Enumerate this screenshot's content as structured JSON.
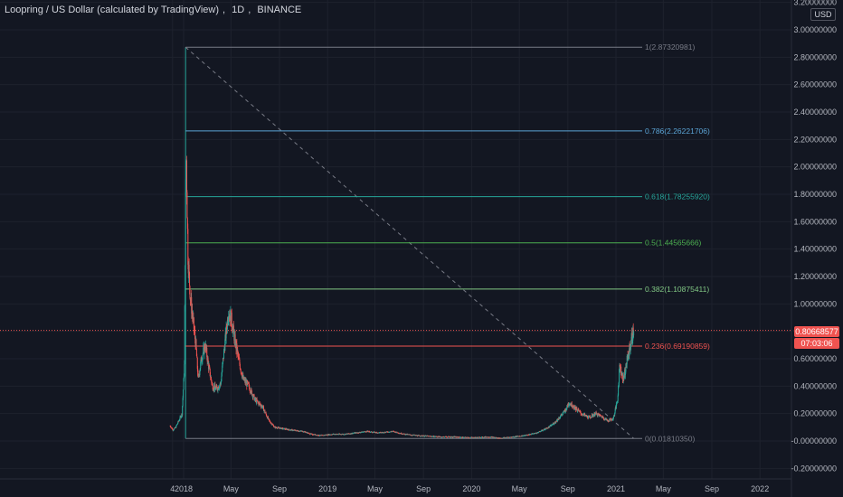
{
  "header": {
    "symbol_title": "Loopring / US Dollar (calculated by TradingView)",
    "interval": "1D",
    "exchange": "BINANCE",
    "currency_button": "USD"
  },
  "current_price": {
    "price_label": "0.80668577",
    "countdown_label": "07:03:06",
    "value": 0.80668577
  },
  "colors": {
    "background": "#131722",
    "grid": "#1e222d",
    "up": "#26a69a",
    "down": "#ef5350",
    "fib_786": "#5ba4d6",
    "fib_618": "#26a69a",
    "fib_5": "#4caf50",
    "fib_382": "#81c784",
    "fib_236": "#ef5350",
    "fib_0": "#787b86",
    "fib_1": "#787b86"
  },
  "chart_data": {
    "type": "candlestick",
    "xaxis": {
      "tick_labels": [
        "4",
        "2018",
        "May",
        "Sep",
        "2019",
        "May",
        "Sep",
        "2020",
        "May",
        "Sep",
        "2021",
        "May",
        "Sep",
        "2022"
      ],
      "range": [
        "2017-11-20",
        "2022-05-01"
      ]
    },
    "yaxis": {
      "tick_labels": [
        "3.20000000",
        "3.00000000",
        "2.80000000",
        "2.60000000",
        "2.40000000",
        "2.20000000",
        "2.00000000",
        "1.80000000",
        "1.60000000",
        "1.40000000",
        "1.20000000",
        "1.00000000",
        "0.80000000",
        "0.60000000",
        "0.40000000",
        "0.20000000",
        "-0.00000000",
        "-0.20000000"
      ],
      "ylim": [
        -0.24,
        3.22
      ],
      "grid": true
    },
    "fib_retracement": {
      "start_date": "2018-01-06",
      "end_date": "2021-02-15",
      "levels": [
        {
          "ratio": 1,
          "price": 2.87320981,
          "label": "1(2.87320981)"
        },
        {
          "ratio": 0.786,
          "price": 2.26221706,
          "label": "0.786(2.26221706)"
        },
        {
          "ratio": 0.618,
          "price": 1.7825592,
          "label": "0.618(1.78255920)"
        },
        {
          "ratio": 0.5,
          "price": 1.44565666,
          "label": "0.5(1.44565666)"
        },
        {
          "ratio": 0.382,
          "price": 1.10875411,
          "label": "0.382(1.10875411)"
        },
        {
          "ratio": 0.236,
          "price": 0.69190859,
          "label": "0.236(0.69190859)"
        },
        {
          "ratio": 0,
          "price": 0.0181035,
          "label": "0(0.01810350)"
        }
      ]
    },
    "price_path": [
      [
        "2017-11-28",
        0.11
      ],
      [
        "2017-12-05",
        0.08
      ],
      [
        "2017-12-12",
        0.1
      ],
      [
        "2017-12-20",
        0.15
      ],
      [
        "2017-12-28",
        0.2
      ],
      [
        "2018-01-03",
        0.55
      ],
      [
        "2018-01-06",
        1.75
      ],
      [
        "2018-01-08",
        2.05
      ],
      [
        "2018-01-12",
        1.35
      ],
      [
        "2018-01-18",
        1.05
      ],
      [
        "2018-01-24",
        0.9
      ],
      [
        "2018-02-01",
        0.7
      ],
      [
        "2018-02-07",
        0.45
      ],
      [
        "2018-02-15",
        0.6
      ],
      [
        "2018-02-25",
        0.7
      ],
      [
        "2018-03-05",
        0.55
      ],
      [
        "2018-03-15",
        0.4
      ],
      [
        "2018-03-25",
        0.38
      ],
      [
        "2018-04-05",
        0.42
      ],
      [
        "2018-04-15",
        0.7
      ],
      [
        "2018-04-25",
        0.95
      ],
      [
        "2018-05-01",
        0.9
      ],
      [
        "2018-05-10",
        0.75
      ],
      [
        "2018-05-20",
        0.6
      ],
      [
        "2018-06-01",
        0.45
      ],
      [
        "2018-06-15",
        0.4
      ],
      [
        "2018-07-01",
        0.3
      ],
      [
        "2018-07-20",
        0.25
      ],
      [
        "2018-08-05",
        0.15
      ],
      [
        "2018-08-20",
        0.1
      ],
      [
        "2018-09-10",
        0.09
      ],
      [
        "2018-10-01",
        0.08
      ],
      [
        "2018-11-01",
        0.07
      ],
      [
        "2018-11-20",
        0.05
      ],
      [
        "2018-12-15",
        0.04
      ],
      [
        "2019-01-15",
        0.05
      ],
      [
        "2019-02-15",
        0.05
      ],
      [
        "2019-03-15",
        0.06
      ],
      [
        "2019-04-10",
        0.07
      ],
      [
        "2019-05-10",
        0.06
      ],
      [
        "2019-06-15",
        0.07
      ],
      [
        "2019-07-15",
        0.05
      ],
      [
        "2019-08-15",
        0.04
      ],
      [
        "2019-09-15",
        0.035
      ],
      [
        "2019-10-15",
        0.03
      ],
      [
        "2019-11-15",
        0.03
      ],
      [
        "2019-12-15",
        0.025
      ],
      [
        "2020-01-15",
        0.025
      ],
      [
        "2020-02-15",
        0.03
      ],
      [
        "2020-03-13",
        0.02
      ],
      [
        "2020-04-15",
        0.03
      ],
      [
        "2020-05-15",
        0.04
      ],
      [
        "2020-06-15",
        0.06
      ],
      [
        "2020-07-15",
        0.1
      ],
      [
        "2020-08-01",
        0.14
      ],
      [
        "2020-08-25",
        0.22
      ],
      [
        "2020-09-05",
        0.28
      ],
      [
        "2020-09-20",
        0.24
      ],
      [
        "2020-10-05",
        0.2
      ],
      [
        "2020-10-25",
        0.17
      ],
      [
        "2020-11-10",
        0.2
      ],
      [
        "2020-11-25",
        0.18
      ],
      [
        "2020-12-10",
        0.15
      ],
      [
        "2020-12-25",
        0.16
      ],
      [
        "2021-01-05",
        0.3
      ],
      [
        "2021-01-10",
        0.55
      ],
      [
        "2021-01-20",
        0.45
      ],
      [
        "2021-01-30",
        0.6
      ],
      [
        "2021-02-10",
        0.75
      ],
      [
        "2021-02-15",
        0.81
      ]
    ]
  }
}
